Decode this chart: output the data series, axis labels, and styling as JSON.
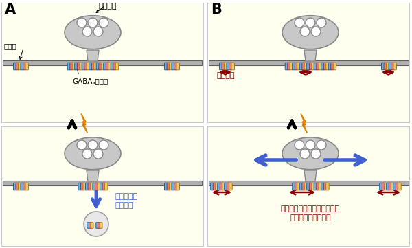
{
  "bg_color": "#fffff0",
  "membrane_color": "#b0b0b0",
  "synapse_body_color": "#c8c8c8",
  "synapse_outline": "#888888",
  "receptor_blue": "#6ab0e0",
  "receptor_pink": "#e08080",
  "receptor_yellow": "#e8c870",
  "arrow_black": "#000000",
  "arrow_blue": "#4060d0",
  "arrow_red": "#8b0000",
  "lightning_yellow": "#ffc000",
  "lightning_outline": "#e08000",
  "label_A": "A",
  "label_B": "B",
  "text_synapse": "シナプス",
  "text_membrane": "細胞膜",
  "text_receptor": "GABAₐ受容体",
  "text_lateral": "側方拡散",
  "text_internalize": "細胞内への\n取り込み",
  "text_efflux": "受容体側方拡散の増加による\nシナプス外への流出"
}
